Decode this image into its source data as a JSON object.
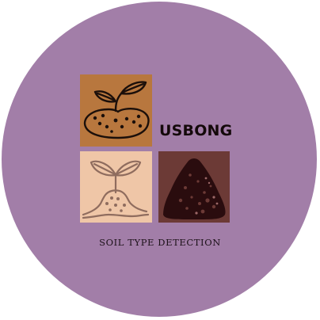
{
  "logo": {
    "brand_name": "USBONG",
    "tagline": "SOIL TYPE DETECTION",
    "colors": {
      "background": "#a27ea8",
      "seed_tile": "#b8773e",
      "sprout_tile": "#efc6a7",
      "pile_tile": "#6c3a36",
      "ink": "#14090a"
    },
    "tiles": [
      {
        "icon": "seedling-soil-icon"
      },
      {
        "icon": "sprout-soil-icon"
      },
      {
        "icon": "soil-pile-icon"
      }
    ]
  }
}
